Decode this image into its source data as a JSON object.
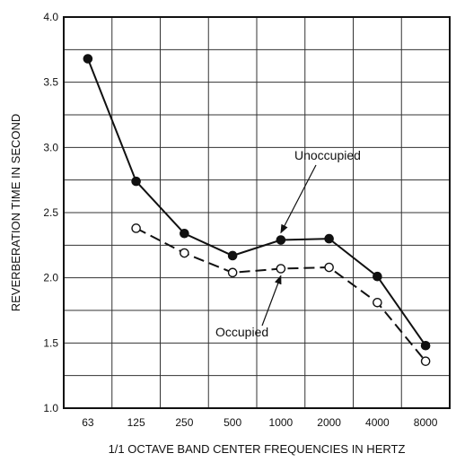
{
  "chart_data": {
    "type": "line",
    "xlabel": "1/1 OCTAVE BAND CENTER FREQUENCIES IN HERTZ",
    "ylabel": "REVERBERATION TIME IN SECOND",
    "categories": [
      "63",
      "125",
      "250",
      "500",
      "1000",
      "2000",
      "4000",
      "8000"
    ],
    "y_ticks": [
      "1.0",
      "1.5",
      "2.0",
      "2.5",
      "3.0",
      "3.5",
      "4.0"
    ],
    "ylim": [
      1.0,
      4.0
    ],
    "grid": true,
    "series": [
      {
        "name": "Unoccupied",
        "line_style": "solid",
        "marker": "filled-circle",
        "color": "#111111",
        "values": [
          3.68,
          2.74,
          2.34,
          2.17,
          2.29,
          2.3,
          2.01,
          1.48
        ]
      },
      {
        "name": "Occupied",
        "line_style": "dashed",
        "marker": "open-circle",
        "color": "#111111",
        "values": [
          null,
          2.38,
          2.19,
          2.04,
          2.07,
          2.08,
          1.81,
          1.36
        ]
      }
    ],
    "annotations": [
      {
        "text": "Unoccupied",
        "series": "Unoccupied",
        "category": "1000"
      },
      {
        "text": "Occupied",
        "series": "Occupied",
        "category": "1000"
      }
    ]
  }
}
